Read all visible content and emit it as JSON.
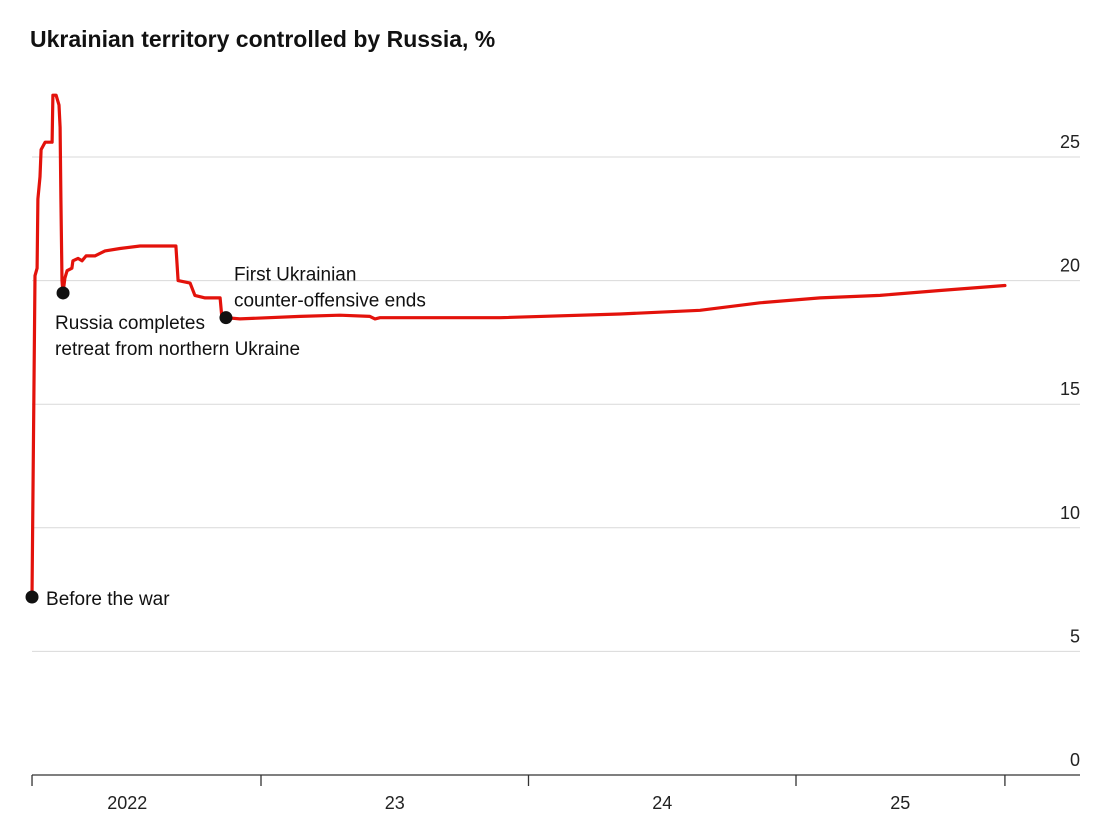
{
  "chart_data": {
    "type": "line",
    "title": "Ukrainian territory controlled by Russia, %",
    "xlabel": "",
    "ylabel": "",
    "ylim": [
      0,
      27.5
    ],
    "xlim": [
      2022.14,
      2025.8
    ],
    "yticks": [
      0,
      5,
      10,
      15,
      20,
      25
    ],
    "ytick_labels": [
      "0",
      "5",
      "10",
      "15",
      "20",
      "25"
    ],
    "xtick_positions": [
      2022.144,
      2023,
      2024,
      2025,
      2025.781
    ],
    "xcategory_labels": [
      {
        "label": "2022",
        "center": 2022.5
      },
      {
        "label": "23",
        "center": 2023.5
      },
      {
        "label": "24",
        "center": 2024.5
      },
      {
        "label": "25",
        "center": 2025.39
      }
    ],
    "grid": true,
    "color": "#e3120b",
    "series": [
      {
        "name": "Ukrainian territory controlled by Russia",
        "x": [
          2022.144,
          2022.155,
          2022.163,
          2022.166,
          2022.174,
          2022.178,
          2022.193,
          2022.204,
          2022.219,
          2022.222,
          2022.234,
          2022.245,
          2022.249,
          2022.252,
          2022.256,
          2022.26,
          2022.267,
          2022.275,
          2022.293,
          2022.297,
          2022.316,
          2022.331,
          2022.346,
          2022.379,
          2022.417,
          2022.473,
          2022.548,
          2022.66,
          2022.682,
          2022.69,
          2022.735,
          2022.753,
          2022.791,
          2022.847,
          2022.854,
          2022.869,
          2022.921,
          2023.146,
          2023.295,
          2023.407,
          2023.426,
          2023.445,
          2023.557,
          2023.893,
          2024.342,
          2024.641,
          2024.865,
          2025.09,
          2025.314,
          2025.538,
          2025.781
        ],
        "y": [
          7.2,
          20.2,
          20.5,
          23.3,
          24.2,
          25.3,
          25.6,
          25.6,
          25.6,
          27.5,
          27.5,
          27.1,
          26.2,
          23.3,
          20.0,
          19.5,
          20.1,
          20.4,
          20.5,
          20.8,
          20.9,
          20.8,
          21.0,
          21.0,
          21.2,
          21.3,
          21.4,
          21.4,
          21.4,
          20.0,
          19.9,
          19.4,
          19.3,
          19.3,
          18.5,
          18.5,
          18.45,
          18.55,
          18.6,
          18.55,
          18.45,
          18.5,
          18.5,
          18.5,
          18.65,
          18.8,
          19.1,
          19.3,
          19.4,
          19.6,
          19.8
        ]
      }
    ],
    "annotations": [
      {
        "lines": [
          "Before the war"
        ],
        "x": 2022.144,
        "y": 7.2
      },
      {
        "lines": [
          "Russia completes",
          "retreat from northern Ukraine"
        ],
        "x": 2022.26,
        "y": 19.5
      },
      {
        "lines": [
          "First Ukrainian",
          "counter-offensive ends"
        ],
        "x": 2022.869,
        "y": 18.5
      }
    ]
  }
}
